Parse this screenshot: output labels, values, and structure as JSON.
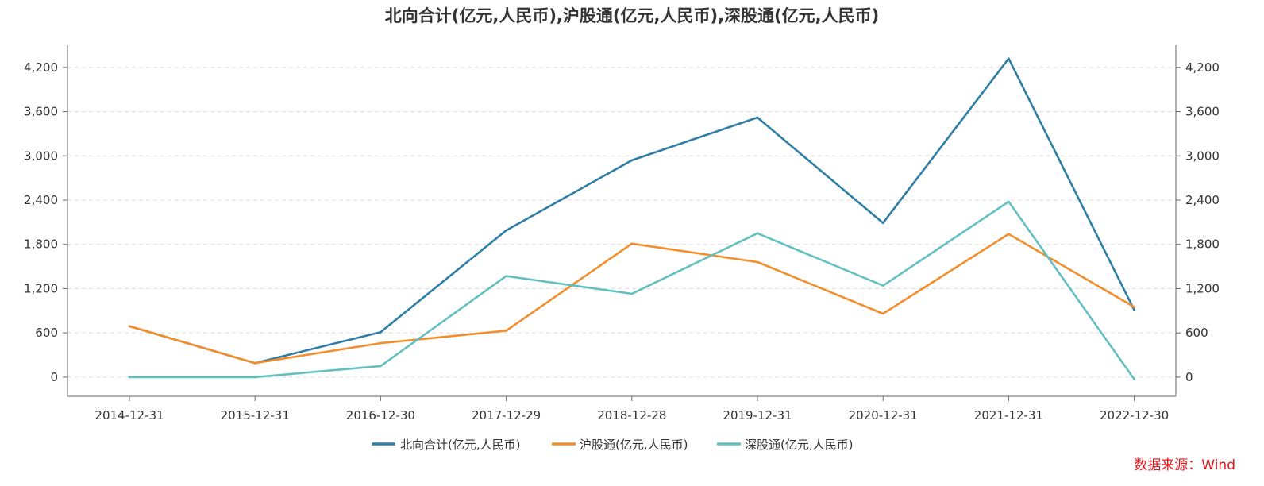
{
  "chart_data": {
    "type": "line",
    "title": "北向合计(亿元,人民币),沪股通(亿元,人民币),深股通(亿元,人民币)",
    "categories": [
      "2014-12-31",
      "2015-12-31",
      "2016-12-30",
      "2017-12-29",
      "2018-12-28",
      "2019-12-31",
      "2020-12-31",
      "2021-12-31",
      "2022-12-30"
    ],
    "yticks": [
      0,
      600,
      1200,
      1800,
      2400,
      3000,
      3600,
      4200
    ],
    "ytick_labels": [
      "0",
      "600",
      "1,200",
      "1,800",
      "2,400",
      "3,000",
      "3,600",
      "4,200"
    ],
    "ylim": [
      -260,
      4500
    ],
    "grid": true,
    "legend_position": "bottom",
    "series": [
      {
        "name": "北向合计(亿元,人民币)",
        "color": "#2e7ea6",
        "values": [
          690,
          190,
          610,
          1990,
          2940,
          3520,
          2090,
          4320,
          910
        ]
      },
      {
        "name": "沪股通(亿元,人民币)",
        "color": "#f28e2b",
        "values": [
          690,
          190,
          460,
          630,
          1810,
          1560,
          860,
          1940,
          950
        ]
      },
      {
        "name": "深股通(亿元,人民币)",
        "color": "#64c0c0",
        "values": [
          0,
          0,
          150,
          1370,
          1130,
          1950,
          1240,
          2380,
          -30
        ]
      }
    ]
  },
  "source_note": "数据来源：Wind"
}
